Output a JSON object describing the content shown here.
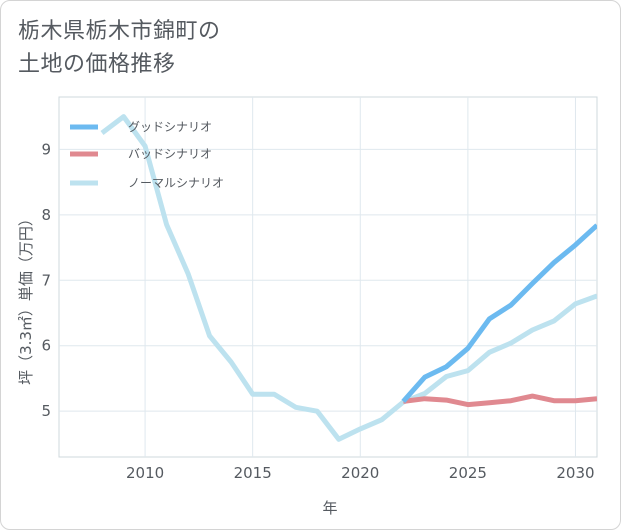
{
  "title_lines": [
    "栃木県栃木市錦町の",
    "土地の価格推移"
  ],
  "chart_data": {
    "type": "line",
    "title": "栃木県栃木市錦町の土地の価格推移",
    "xlabel": "年",
    "ylabel": "坪（3.3㎡）単価（万円）",
    "xlim": [
      2006,
      2031
    ],
    "ylim": [
      4.3,
      9.8
    ],
    "x_ticks": [
      2010,
      2015,
      2020,
      2025,
      2030
    ],
    "y_ticks": [
      5,
      6,
      7,
      8,
      9
    ],
    "grid": true,
    "legend_position": "top-left",
    "series": [
      {
        "name": "グッドシナリオ",
        "color": "#6cbaf0",
        "x": [
          2022,
          2023,
          2024,
          2025,
          2026,
          2027,
          2028,
          2029,
          2030,
          2031
        ],
        "y": [
          5.15,
          5.52,
          5.68,
          5.96,
          6.41,
          6.62,
          6.95,
          7.27,
          7.54,
          7.84
        ]
      },
      {
        "name": "バッドシナリオ",
        "color": "#e08990",
        "x": [
          2022,
          2023,
          2024,
          2025,
          2026,
          2027,
          2028,
          2029,
          2030,
          2031
        ],
        "y": [
          5.15,
          5.19,
          5.17,
          5.1,
          5.13,
          5.16,
          5.23,
          5.16,
          5.16,
          5.19
        ]
      },
      {
        "name": "ノーマルシナリオ",
        "color": "#bde2ef",
        "x": [
          2008,
          2009,
          2010,
          2011,
          2012,
          2013,
          2014,
          2015,
          2016,
          2017,
          2018,
          2019,
          2020,
          2021,
          2022,
          2023,
          2024,
          2025,
          2026,
          2027,
          2028,
          2029,
          2030,
          2031
        ],
        "y": [
          9.25,
          9.5,
          9.05,
          7.85,
          7.1,
          6.15,
          5.75,
          5.26,
          5.26,
          5.06,
          5.0,
          4.57,
          4.73,
          4.87,
          5.14,
          5.27,
          5.53,
          5.62,
          5.9,
          6.04,
          6.24,
          6.38,
          6.64,
          6.76
        ]
      }
    ]
  }
}
